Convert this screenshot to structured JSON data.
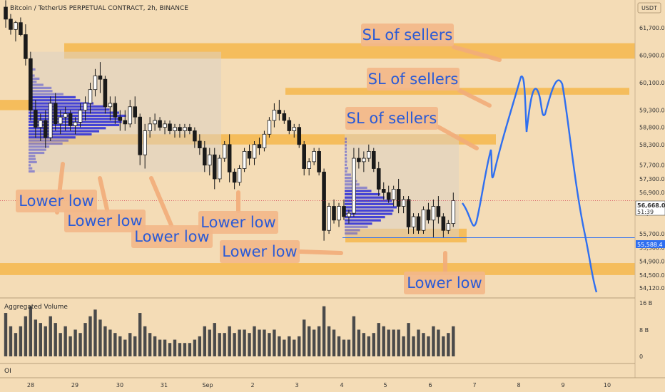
{
  "header": {
    "title": "Bitcoin / TetherUS PERPETUAL CONTRACT, 2h, BINANCE"
  },
  "currency_badge": "USDT",
  "price_label": {
    "value": "56,668.0",
    "countdown": "51:39"
  },
  "line_label": {
    "value": "55,588.4"
  },
  "volume_panel": {
    "title": "Aggregated Volume",
    "ticks": [
      "16 B",
      "8 B",
      "0"
    ]
  },
  "oi_panel": {
    "title": "OI"
  },
  "colors": {
    "background": "#f4dcb6",
    "zone": "#f5b74c",
    "bull": "#ffffff",
    "bear": "#1a1a1a",
    "volume_profile": "#3b3bd6",
    "annotation": "#2a5ad6",
    "projection": "#2f6ff0"
  },
  "chart_data": {
    "type": "candlestick",
    "title": "Bitcoin / TetherUS PERPETUAL CONTRACT, 2h, BINANCE",
    "y_axis": {
      "ticks": [
        "61,700.0",
        "60,900.0",
        "60,100.0",
        "59,300.0",
        "58,800.0",
        "58,300.0",
        "57,700.0",
        "57,300.0",
        "56,900.0",
        "56,300.0",
        "55,700.0",
        "55,300.0",
        "54,900.0",
        "54,500.0",
        "54,120.0"
      ],
      "ylim": [
        54000,
        62300
      ]
    },
    "x_axis": {
      "ticks": [
        "28",
        "29",
        "30",
        "31",
        "Sep",
        "2",
        "3",
        "4",
        "5",
        "6",
        "7",
        "8",
        "9",
        "10"
      ]
    },
    "candles": [
      [
        62300,
        62500,
        61700,
        61950
      ],
      [
        61950,
        62100,
        61500,
        61650
      ],
      [
        61650,
        61900,
        61300,
        61850
      ],
      [
        61850,
        62000,
        61450,
        61500
      ],
      [
        61500,
        61800,
        60600,
        60800
      ],
      [
        60800,
        61000,
        59000,
        59300
      ],
      [
        59300,
        59600,
        58500,
        58800
      ],
      [
        58800,
        59200,
        58400,
        59000
      ],
      [
        59000,
        59300,
        58200,
        58500
      ],
      [
        58500,
        59700,
        58400,
        59500
      ],
      [
        59500,
        59800,
        58700,
        58900
      ],
      [
        58900,
        59300,
        58600,
        59100
      ],
      [
        59100,
        59400,
        58700,
        59200
      ],
      [
        59200,
        59300,
        58700,
        58850
      ],
      [
        58850,
        59100,
        58600,
        58950
      ],
      [
        58950,
        59500,
        58800,
        59300
      ],
      [
        59300,
        59700,
        59000,
        59500
      ],
      [
        59500,
        60100,
        59200,
        59900
      ],
      [
        59900,
        60500,
        59700,
        60300
      ],
      [
        60300,
        60700,
        59800,
        60200
      ],
      [
        60200,
        60300,
        59200,
        59400
      ],
      [
        59400,
        59700,
        59000,
        59500
      ],
      [
        59500,
        59700,
        58900,
        59100
      ],
      [
        59100,
        59300,
        58700,
        59000
      ],
      [
        59000,
        59300,
        58700,
        58900
      ],
      [
        58900,
        59600,
        58800,
        59400
      ],
      [
        59400,
        59700,
        58900,
        59100
      ],
      [
        59100,
        59200,
        57700,
        58000
      ],
      [
        58000,
        58900,
        57600,
        58700
      ],
      [
        58700,
        59100,
        58500,
        58900
      ],
      [
        58900,
        59200,
        58700,
        59000
      ],
      [
        59000,
        59100,
        58700,
        58800
      ],
      [
        58800,
        59000,
        58600,
        58900
      ],
      [
        58900,
        59000,
        58600,
        58700
      ],
      [
        58700,
        58900,
        58500,
        58800
      ],
      [
        58800,
        58900,
        58500,
        58700
      ],
      [
        58700,
        58900,
        58500,
        58800
      ],
      [
        58800,
        58900,
        58600,
        58700
      ],
      [
        58700,
        58800,
        58200,
        58400
      ],
      [
        58400,
        58600,
        58000,
        58200
      ],
      [
        58200,
        58400,
        57500,
        57700
      ],
      [
        57700,
        58200,
        57400,
        58000
      ],
      [
        58000,
        58200,
        57000,
        57300
      ],
      [
        57300,
        58000,
        57200,
        57900
      ],
      [
        57900,
        58400,
        57800,
        58300
      ],
      [
        58300,
        58600,
        57200,
        57500
      ],
      [
        57500,
        57600,
        57000,
        57200
      ],
      [
        57200,
        57700,
        57100,
        57600
      ],
      [
        57600,
        58200,
        57500,
        58100
      ],
      [
        58100,
        58300,
        57700,
        57900
      ],
      [
        57900,
        58400,
        57700,
        58300
      ],
      [
        58300,
        58500,
        58000,
        58200
      ],
      [
        58200,
        58700,
        58100,
        58600
      ],
      [
        58600,
        59100,
        58500,
        59000
      ],
      [
        59000,
        59500,
        58800,
        59300
      ],
      [
        59300,
        59600,
        59000,
        59200
      ],
      [
        59200,
        59300,
        58900,
        59000
      ],
      [
        59000,
        59100,
        58600,
        58700
      ],
      [
        58700,
        58900,
        58500,
        58800
      ],
      [
        58800,
        58900,
        58200,
        58300
      ],
      [
        58300,
        58400,
        57400,
        57600
      ],
      [
        57600,
        57900,
        57400,
        57800
      ],
      [
        57800,
        58200,
        57700,
        58100
      ],
      [
        58100,
        58200,
        57400,
        57500
      ],
      [
        57500,
        57600,
        55500,
        55800
      ],
      [
        55800,
        56600,
        55700,
        56500
      ],
      [
        56500,
        56700,
        56000,
        56100
      ],
      [
        56100,
        56600,
        55900,
        56500
      ],
      [
        56500,
        56700,
        56100,
        56200
      ],
      [
        56200,
        56400,
        56000,
        56300
      ],
      [
        56300,
        58200,
        56200,
        57900
      ],
      [
        57900,
        58200,
        57600,
        57800
      ],
      [
        57800,
        58100,
        57500,
        57900
      ],
      [
        57900,
        58300,
        57800,
        58100
      ],
      [
        58100,
        58200,
        57500,
        57600
      ],
      [
        57600,
        57800,
        56800,
        57000
      ],
      [
        57000,
        57200,
        56700,
        56900
      ],
      [
        56900,
        57100,
        56600,
        56700
      ],
      [
        56700,
        57100,
        56500,
        57000
      ],
      [
        57000,
        57300,
        56300,
        56500
      ],
      [
        56500,
        56800,
        56300,
        56700
      ],
      [
        56700,
        56800,
        55700,
        55900
      ],
      [
        55900,
        56300,
        55700,
        56200
      ],
      [
        56200,
        56300,
        55700,
        55800
      ],
      [
        55800,
        56500,
        55700,
        56400
      ],
      [
        56400,
        56600,
        56000,
        56100
      ],
      [
        56100,
        56700,
        55600,
        56500
      ],
      [
        56500,
        56800,
        56000,
        56200
      ],
      [
        56200,
        56300,
        55600,
        55800
      ],
      [
        55800,
        56100,
        55700,
        56000
      ],
      [
        56000,
        56900,
        55900,
        56668
      ]
    ],
    "volumes": [
      13,
      9,
      7,
      9,
      12,
      15,
      11,
      10,
      9,
      12,
      10,
      7,
      9,
      6,
      8,
      7,
      10,
      12,
      14,
      11,
      9,
      8,
      7,
      6,
      5,
      7,
      6,
      13,
      9,
      7,
      6,
      5,
      5,
      4,
      5,
      4,
      4,
      4,
      5,
      6,
      9,
      8,
      10,
      7,
      7,
      9,
      7,
      8,
      8,
      7,
      9,
      8,
      8,
      7,
      8,
      6,
      5,
      6,
      5,
      6,
      11,
      9,
      8,
      9,
      15,
      9,
      8,
      6,
      5,
      5,
      12,
      8,
      7,
      6,
      7,
      10,
      9,
      8,
      8,
      8,
      6,
      10,
      6,
      8,
      7,
      6,
      9,
      8,
      6,
      7,
      9
    ],
    "zones": [
      {
        "y1": 61250,
        "y2": 60800
      },
      {
        "y1": 59950,
        "y2": 59750
      },
      {
        "y1": 59600,
        "y2": 59300
      },
      {
        "y1": 58600,
        "y2": 58300
      },
      {
        "y1": 55850,
        "y2": 55450
      },
      {
        "y1": 54850,
        "y2": 54500
      }
    ],
    "annotations": [
      "SL of sellers",
      "SL of sellers",
      "SL of sellers",
      "Lower low",
      "Lower low",
      "Lower low",
      "Lower low",
      "Lower low",
      "Lower low"
    ],
    "current_price": 55588.4
  }
}
